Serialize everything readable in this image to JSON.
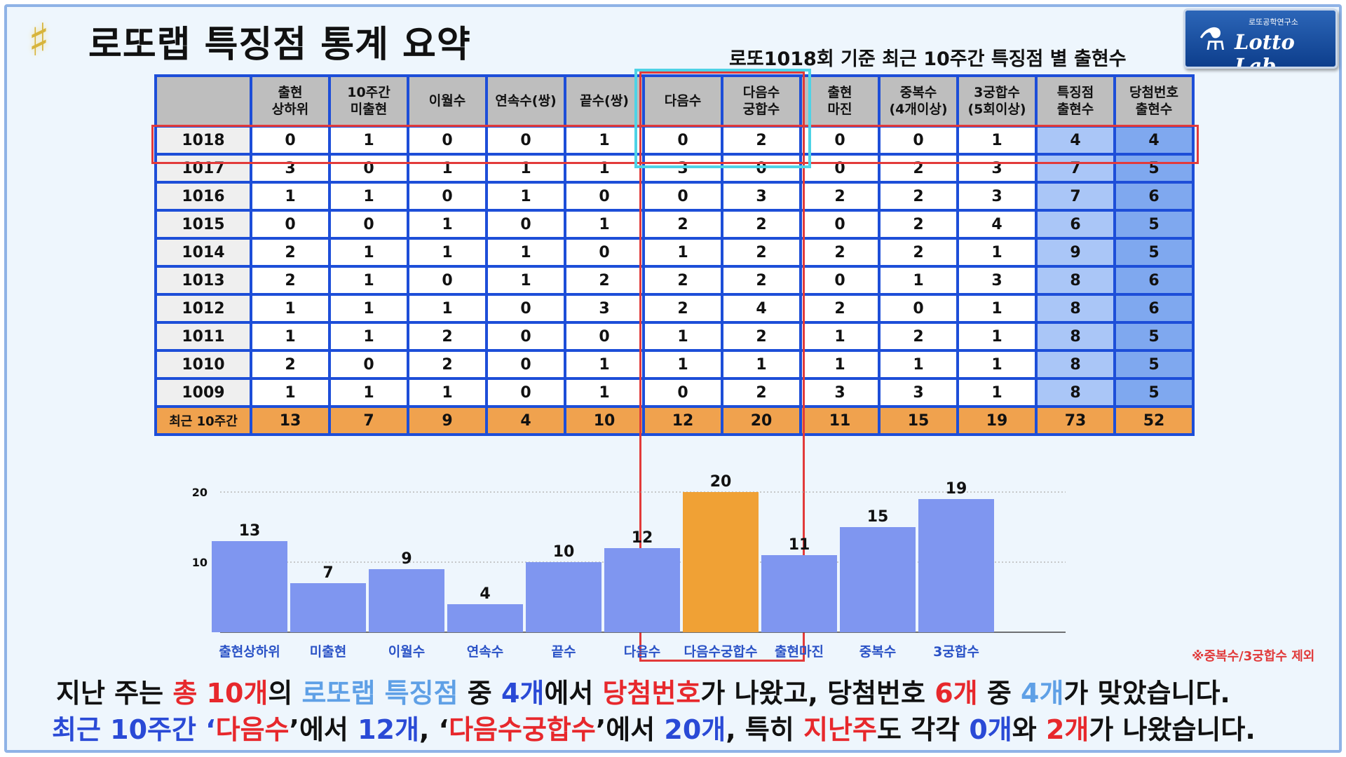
{
  "header": {
    "title": "로또랩 특징점 통계 요약",
    "subtitle": "로또1018회 기준 최근 10주간 특징점 별 출현수",
    "logo_top": "로또공학연구소",
    "logo_main": "Lotto Lab."
  },
  "table": {
    "columns": [
      "",
      "출현\n상하위",
      "10주간\n미출현",
      "이월수",
      "연속수(쌍)",
      "끝수(쌍)",
      "다음수",
      "다음수\n궁합수",
      "출현\n마진",
      "중복수\n(4개이상)",
      "3궁합수\n(5회이상)",
      "특징점\n출현수",
      "당첨번호\n출현수"
    ],
    "rows": [
      {
        "label": "1018",
        "values": [
          0,
          1,
          0,
          0,
          1,
          0,
          2,
          0,
          0,
          1,
          4,
          4
        ]
      },
      {
        "label": "1017",
        "values": [
          3,
          0,
          1,
          1,
          1,
          3,
          0,
          0,
          2,
          3,
          7,
          5
        ]
      },
      {
        "label": "1016",
        "values": [
          1,
          1,
          0,
          1,
          0,
          0,
          3,
          2,
          2,
          3,
          7,
          6
        ]
      },
      {
        "label": "1015",
        "values": [
          0,
          0,
          1,
          0,
          1,
          2,
          2,
          0,
          2,
          4,
          6,
          5
        ]
      },
      {
        "label": "1014",
        "values": [
          2,
          1,
          1,
          1,
          0,
          1,
          2,
          2,
          2,
          1,
          9,
          5
        ]
      },
      {
        "label": "1013",
        "values": [
          2,
          1,
          0,
          1,
          2,
          2,
          2,
          0,
          1,
          3,
          8,
          6
        ]
      },
      {
        "label": "1012",
        "values": [
          1,
          1,
          1,
          0,
          3,
          2,
          4,
          2,
          0,
          1,
          8,
          6
        ]
      },
      {
        "label": "1011",
        "values": [
          1,
          1,
          2,
          0,
          0,
          1,
          2,
          1,
          2,
          1,
          8,
          5
        ]
      },
      {
        "label": "1010",
        "values": [
          2,
          0,
          2,
          0,
          1,
          1,
          1,
          1,
          1,
          1,
          8,
          5
        ]
      },
      {
        "label": "1009",
        "values": [
          1,
          1,
          1,
          0,
          1,
          0,
          2,
          3,
          3,
          1,
          8,
          5
        ]
      }
    ],
    "total": {
      "label": "최근 10주간",
      "values": [
        13,
        7,
        9,
        4,
        10,
        12,
        20,
        11,
        15,
        19,
        73,
        52
      ]
    }
  },
  "chart_data": {
    "type": "bar",
    "categories": [
      "출현상하위",
      "미출현",
      "이월수",
      "연속수",
      "끝수",
      "다음수",
      "다음수궁합수",
      "출현마진",
      "중복수",
      "3궁합수"
    ],
    "values": [
      13,
      7,
      9,
      4,
      10,
      12,
      20,
      11,
      15,
      19
    ],
    "highlight_index": 6,
    "ylim": [
      0,
      20
    ],
    "yticks": [
      10,
      20
    ],
    "grid": true,
    "colors": {
      "bar": "#7f96f0",
      "highlight": "#f0a135",
      "label": "#2a52c6"
    }
  },
  "note": "※중복수/3궁합수 제외",
  "summary": {
    "line1": [
      "지난 주는 ",
      "총 10개",
      "의 ",
      "로또랩 특징점",
      " 중 ",
      "4개",
      "에서 ",
      "당첨번호",
      "가 나왔고, 당첨번호 ",
      "6개",
      " 중 ",
      "4개",
      "가 맞았습니다."
    ],
    "line2": [
      "최근 10주간 ‘",
      "다음수",
      "’에서 ",
      "12개",
      ", ‘",
      "다음수궁합수",
      "’에서 ",
      "20개",
      ", 특히 ",
      "지난주",
      "도 각각 ",
      "0개",
      "와 ",
      "2개",
      "가 나왔습니다."
    ]
  },
  "watermark": "Lotto Lab."
}
